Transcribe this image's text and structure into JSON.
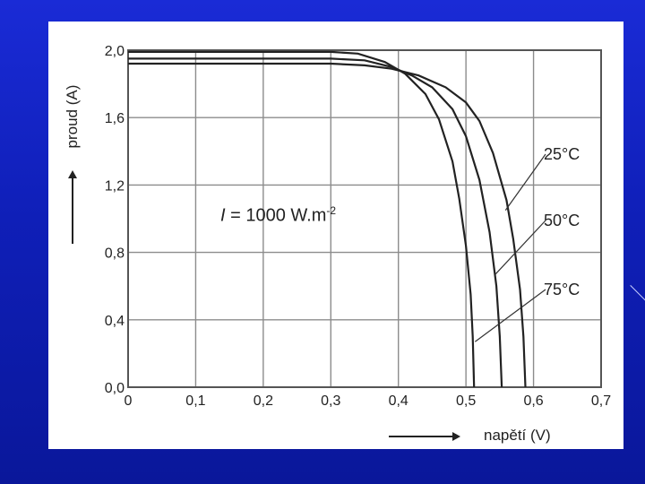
{
  "chart_data": {
    "type": "line",
    "ylabel": "proud (A)",
    "xlabel": "napětí (V)",
    "annotation": {
      "symbol": "I",
      "text": " = 1000 W.m",
      "exponent": "-2"
    },
    "xlim": [
      0,
      0.7
    ],
    "ylim": [
      0,
      2.0
    ],
    "x_ticks": [
      0,
      0.1,
      0.2,
      0.3,
      0.4,
      0.5,
      0.6,
      0.7
    ],
    "x_tick_labels": [
      "0",
      "0,1",
      "0,2",
      "0,3",
      "0,4",
      "0,5",
      "0,6",
      "0,7"
    ],
    "y_ticks": [
      0,
      0.4,
      0.8,
      1.2,
      1.6,
      2.0
    ],
    "y_tick_labels": [
      "0,0",
      "0,4",
      "0,8",
      "1,2",
      "1,6",
      "2,0"
    ],
    "grid": true,
    "series": [
      {
        "name": "25°C",
        "color": "#222222",
        "points": [
          [
            0,
            1.92
          ],
          [
            0.3,
            1.92
          ],
          [
            0.35,
            1.91
          ],
          [
            0.39,
            1.89
          ],
          [
            0.43,
            1.85
          ],
          [
            0.47,
            1.78
          ],
          [
            0.5,
            1.69
          ],
          [
            0.52,
            1.58
          ],
          [
            0.54,
            1.39
          ],
          [
            0.56,
            1.11
          ],
          [
            0.57,
            0.88
          ],
          [
            0.58,
            0.58
          ],
          [
            0.585,
            0.3
          ],
          [
            0.588,
            0.0
          ]
        ]
      },
      {
        "name": "50°C",
        "color": "#222222",
        "points": [
          [
            0,
            1.95
          ],
          [
            0.3,
            1.95
          ],
          [
            0.35,
            1.94
          ],
          [
            0.39,
            1.9
          ],
          [
            0.42,
            1.85
          ],
          [
            0.45,
            1.78
          ],
          [
            0.48,
            1.65
          ],
          [
            0.5,
            1.49
          ],
          [
            0.52,
            1.23
          ],
          [
            0.535,
            0.92
          ],
          [
            0.545,
            0.6
          ],
          [
            0.55,
            0.3
          ],
          [
            0.553,
            0.0
          ]
        ]
      },
      {
        "name": "75°C",
        "color": "#222222",
        "points": [
          [
            0,
            1.99
          ],
          [
            0.3,
            1.99
          ],
          [
            0.34,
            1.98
          ],
          [
            0.38,
            1.93
          ],
          [
            0.41,
            1.86
          ],
          [
            0.44,
            1.74
          ],
          [
            0.46,
            1.59
          ],
          [
            0.48,
            1.34
          ],
          [
            0.49,
            1.12
          ],
          [
            0.5,
            0.84
          ],
          [
            0.507,
            0.55
          ],
          [
            0.51,
            0.3
          ],
          [
            0.512,
            0.0
          ]
        ]
      }
    ],
    "series_labels": [
      "25°C",
      "50°C",
      "75°C"
    ]
  }
}
